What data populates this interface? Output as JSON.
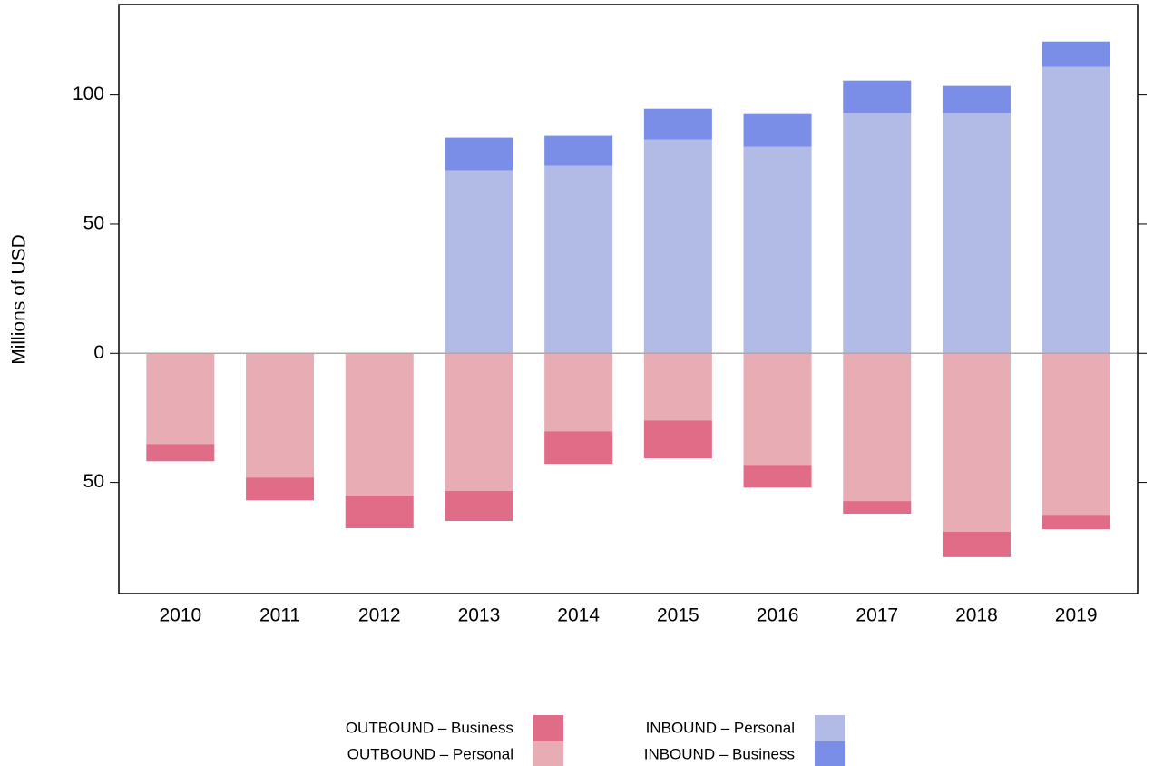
{
  "chart_data": {
    "type": "bar",
    "y_label": "Millions of USD",
    "categories": [
      "2010",
      "2011",
      "2012",
      "2013",
      "2014",
      "2015",
      "2016",
      "2017",
      "2018",
      "2019"
    ],
    "series": [
      {
        "name": "OUTBOUND – Business",
        "color": "#e06c88",
        "values": [
          -6.7,
          -8.8,
          -12.6,
          -11.6,
          -12.6,
          -14.7,
          -8.8,
          -4.9,
          -9.8,
          -5.6
        ]
      },
      {
        "name": "OUTBOUND – Personal",
        "color": "#e8acb5",
        "values": [
          -35.1,
          -48.1,
          -55.1,
          -53.3,
          -30.2,
          -26.0,
          -43.2,
          -57.2,
          -69.1,
          -62.5
        ]
      },
      {
        "name": "INBOUND – Personal",
        "color": "#b2bae6",
        "values": [
          0,
          0,
          0,
          70.9,
          72.6,
          82.8,
          80.0,
          93.0,
          93.0,
          110.9
        ]
      },
      {
        "name": "INBOUND – Business",
        "color": "#7a8ee8",
        "values": [
          0,
          0,
          0,
          12.6,
          11.6,
          11.9,
          12.6,
          12.6,
          10.5,
          9.8
        ]
      }
    ],
    "stacked": true,
    "ylim": [
      -93,
      135
    ],
    "yticks": [
      {
        "value": -50,
        "label": "50"
      },
      0,
      50,
      100
    ],
    "legend": "bottom"
  }
}
